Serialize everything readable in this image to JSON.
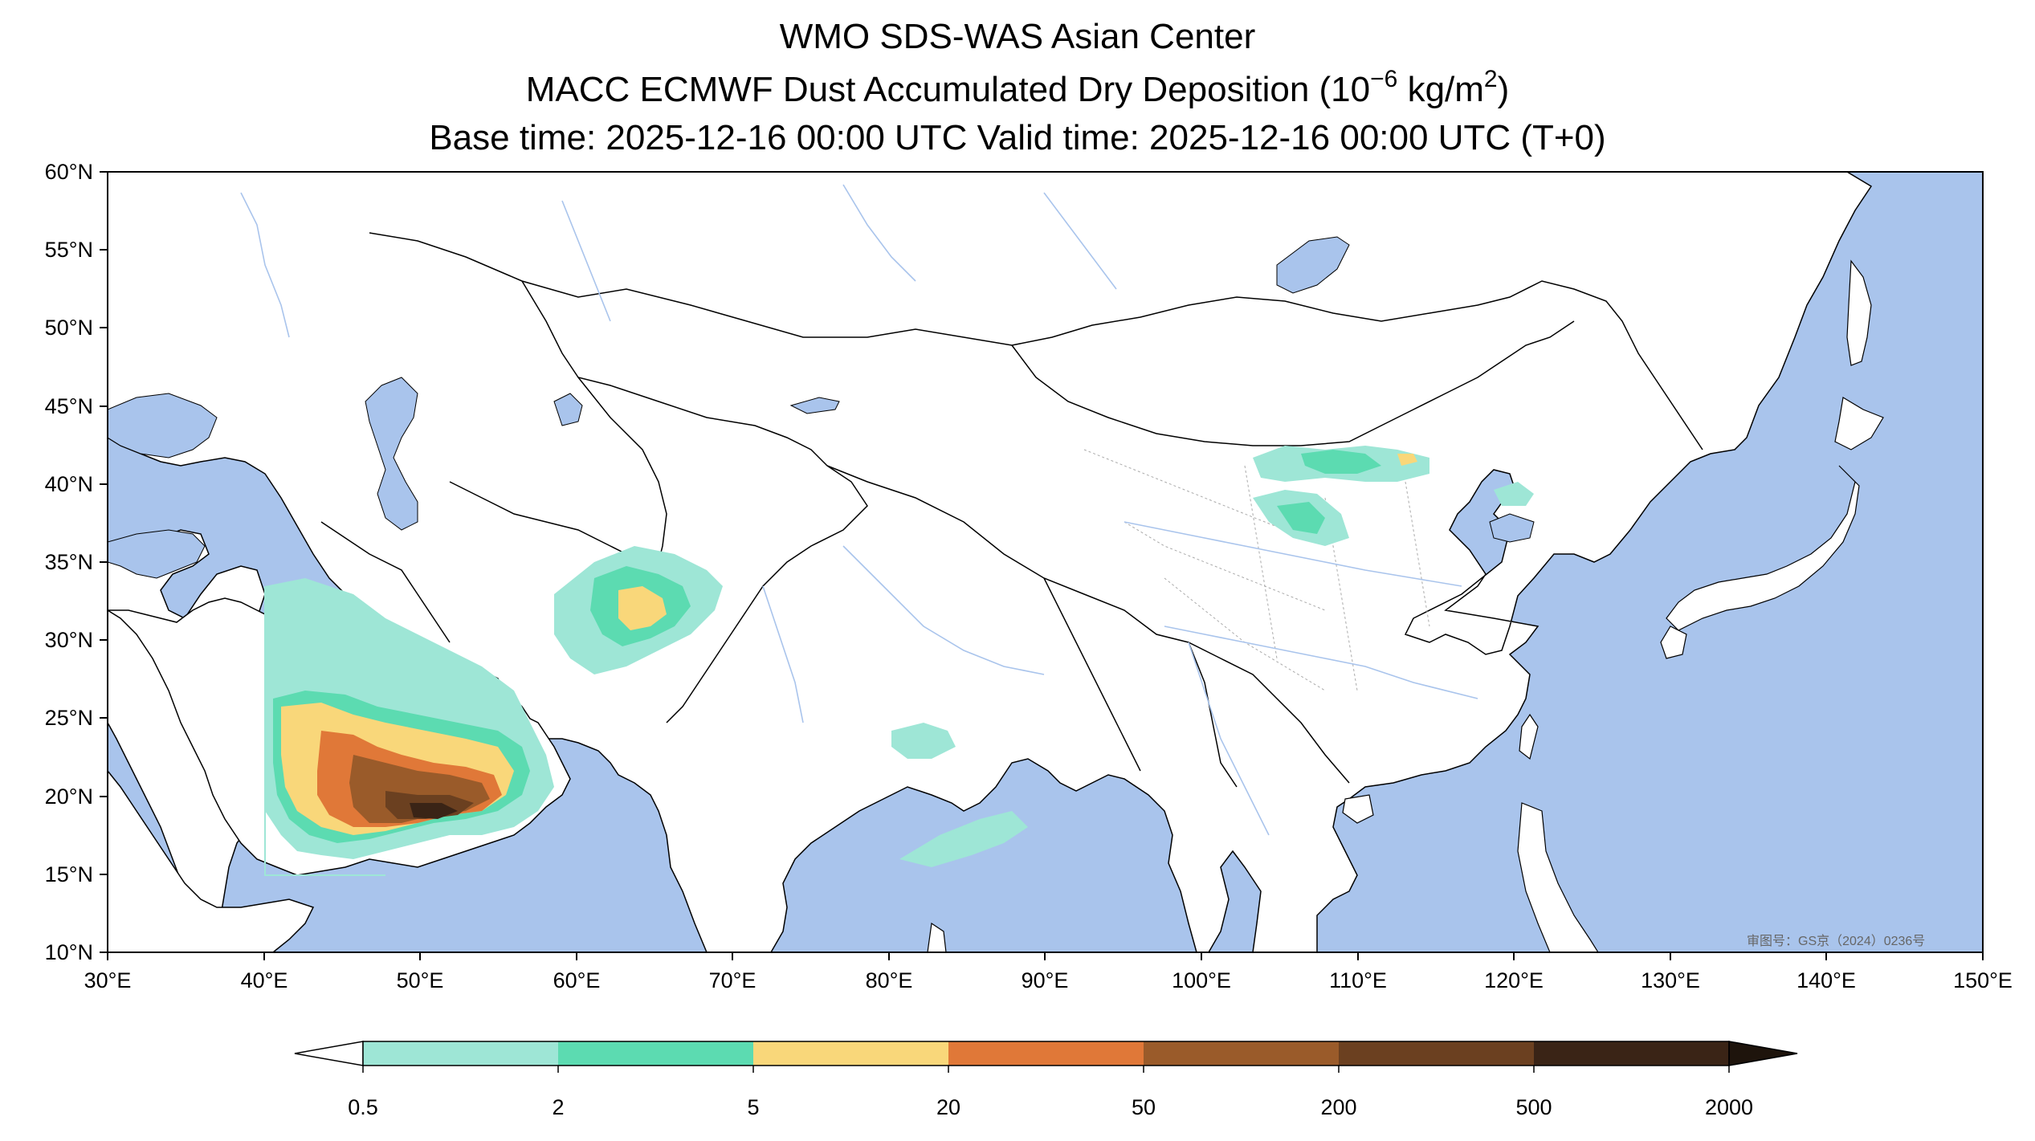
{
  "title": {
    "line1": "WMO SDS-WAS Asian Center",
    "line2_prefix": "MACC ECMWF Dust Accumulated Dry Deposition (10",
    "line2_exp": "−6",
    "line2_mid": " kg/m",
    "line2_exp2": "2",
    "line2_suffix": ")",
    "line3": "Base time: 2025-12-16 00:00 UTC Valid time: 2025-12-16 00:00 UTC (T+0)"
  },
  "map": {
    "lon_range": [
      30,
      150
    ],
    "lat_range": [
      10,
      60
    ],
    "ocean_color": "#a9c4ec",
    "land_color": "#ffffff",
    "border_color": "#000000",
    "river_color": "#a9c4ec",
    "lat_labels": [
      "60°N",
      "55°N",
      "50°N",
      "45°N",
      "40°N",
      "35°N",
      "30°N",
      "25°N",
      "20°N",
      "15°N",
      "10°N"
    ],
    "lon_labels": [
      "30°E",
      "40°E",
      "50°E",
      "60°E",
      "70°E",
      "80°E",
      "90°E",
      "100°E",
      "110°E",
      "120°E",
      "130°E",
      "140°E",
      "150°E"
    ],
    "watermark": "审图号：GS京（2024）0236号"
  },
  "colorbar": {
    "levels": [
      "0.5",
      "2",
      "5",
      "20",
      "50",
      "200",
      "500",
      "2000"
    ],
    "colors": [
      "#9ee6d6",
      "#5cdbb1",
      "#f9d77a",
      "#e07838",
      "#9a5b2a",
      "#6b4020",
      "#3a2416"
    ],
    "under_color": "#ffffff",
    "over_color": "#1e140c"
  }
}
